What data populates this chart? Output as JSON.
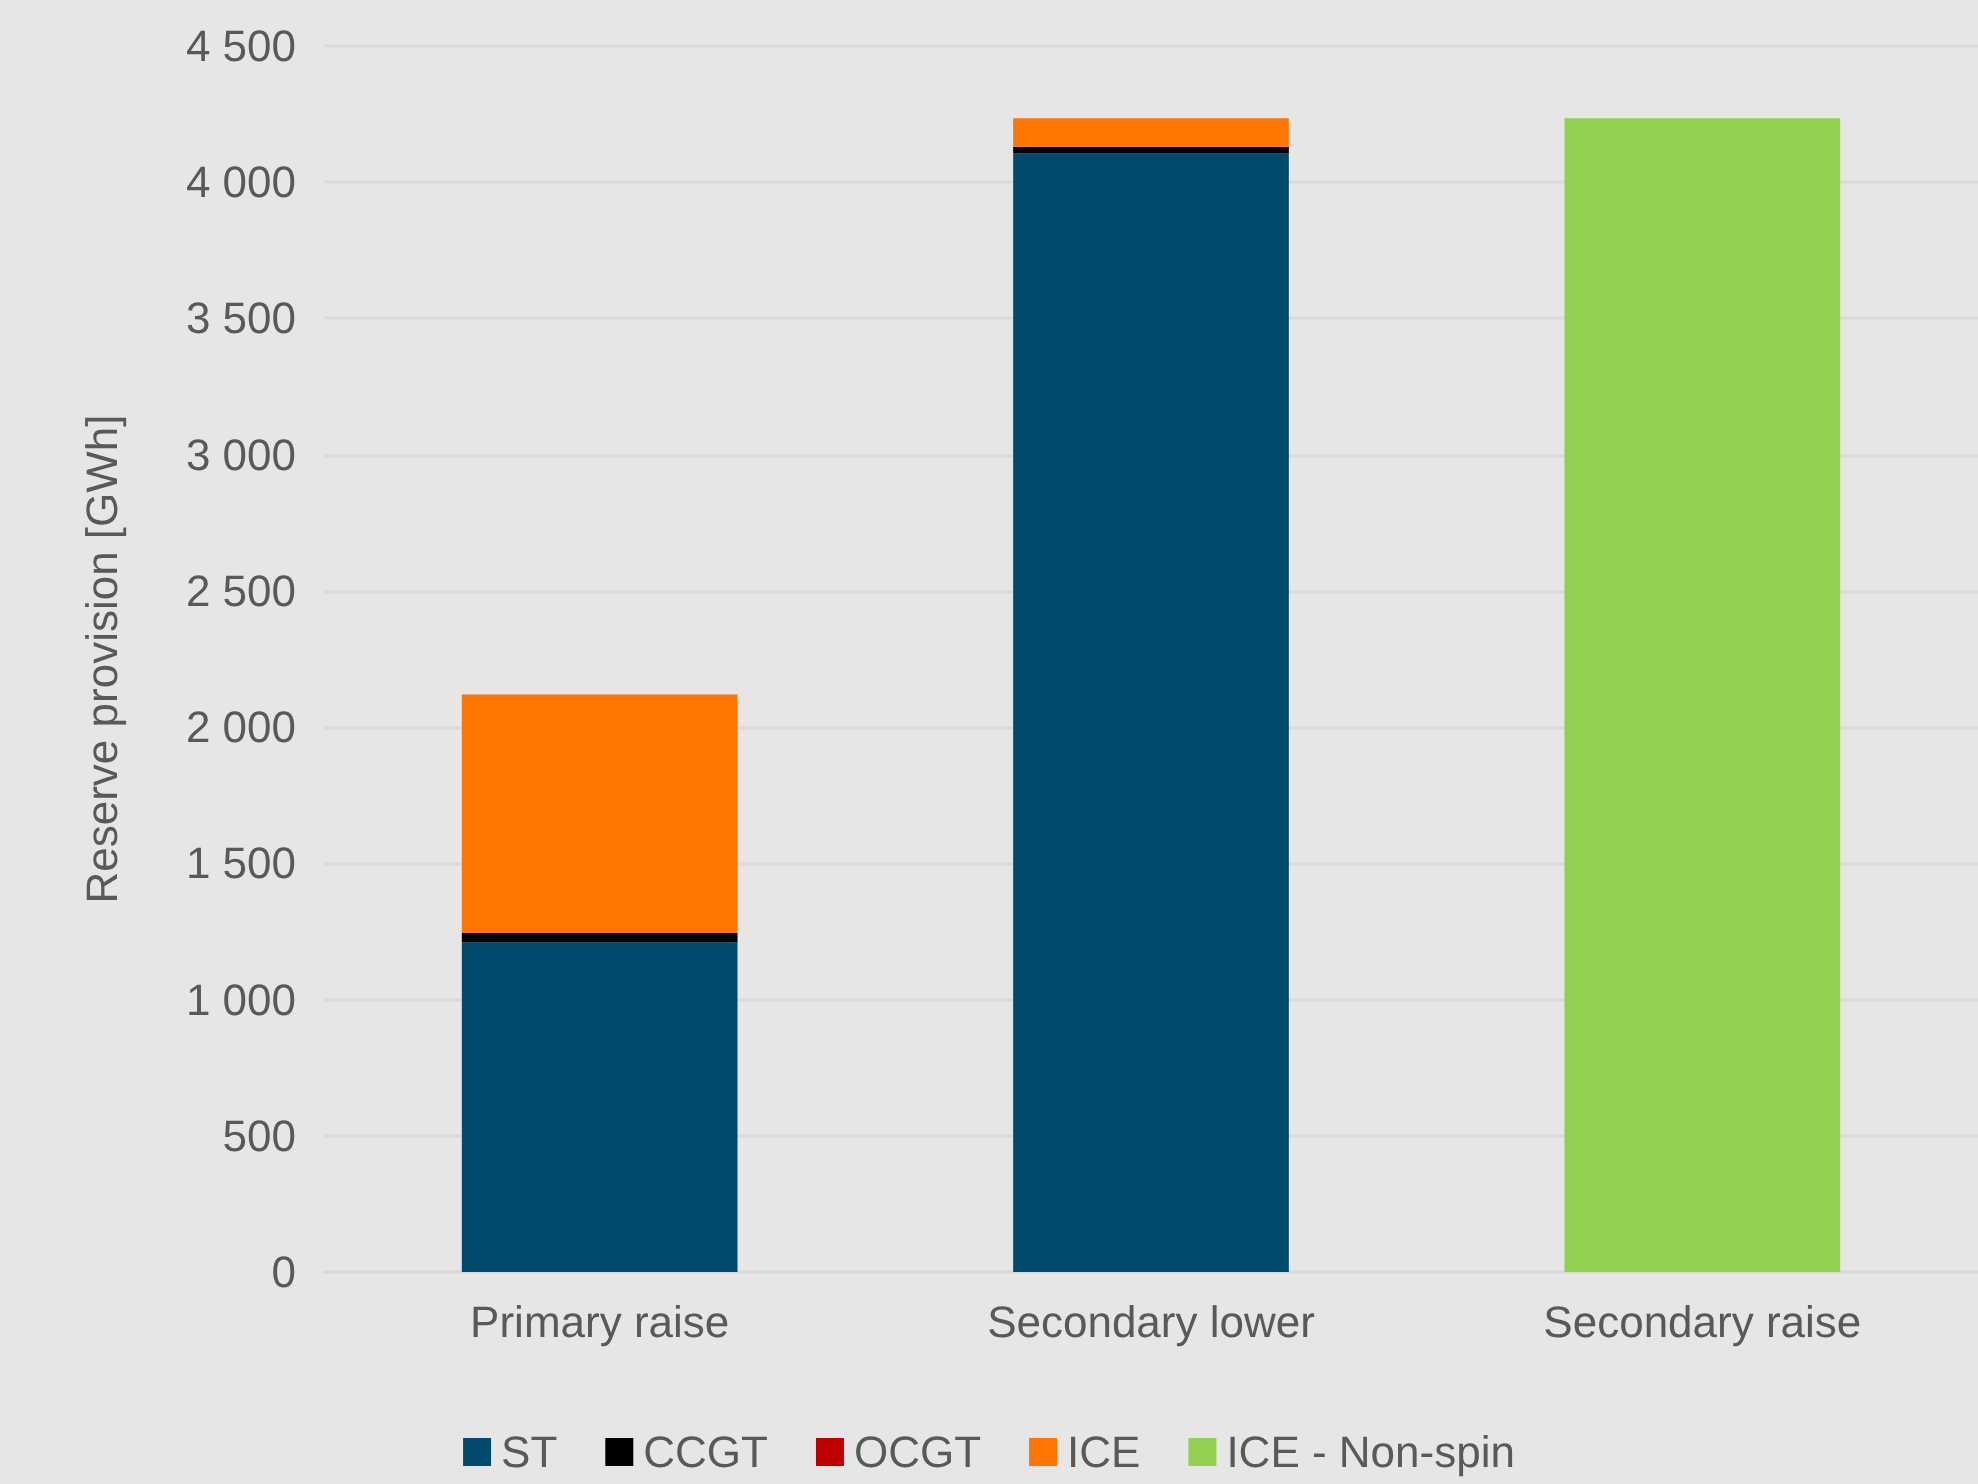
{
  "chart_data": {
    "type": "bar",
    "stacked": true,
    "ylabel": "Reserve provision [GWh]",
    "categories": [
      "Primary raise",
      "Secondary lower",
      "Secondary raise"
    ],
    "series": [
      {
        "name": "ST",
        "color": "#004b6b",
        "values": [
          1210,
          4105,
          null
        ]
      },
      {
        "name": "CCGT",
        "color": "#000000",
        "values": [
          35,
          25,
          null
        ]
      },
      {
        "name": "OCGT",
        "color": "#c00000",
        "values": [
          0,
          0,
          null
        ]
      },
      {
        "name": "ICE",
        "color": "#ff7500",
        "values": [
          875,
          105,
          null
        ]
      },
      {
        "name": "ICE - Non-spin",
        "color": "#92d050",
        "values": [
          null,
          null,
          4235
        ]
      }
    ],
    "ylim": [
      0,
      4500
    ],
    "yticks": [
      0,
      500,
      {
        "value": 1000,
        "label": "1 000"
      },
      {
        "value": 1500,
        "label": "1 500"
      },
      {
        "value": 2000,
        "label": "2 000"
      },
      {
        "value": 2500,
        "label": "2 500"
      },
      {
        "value": 3000,
        "label": "3 000"
      },
      {
        "value": 3500,
        "label": "3 500"
      },
      {
        "value": 4000,
        "label": "4 000"
      },
      {
        "value": 4500,
        "label": "4 500"
      }
    ],
    "grid": "y",
    "legend": "bottom"
  }
}
